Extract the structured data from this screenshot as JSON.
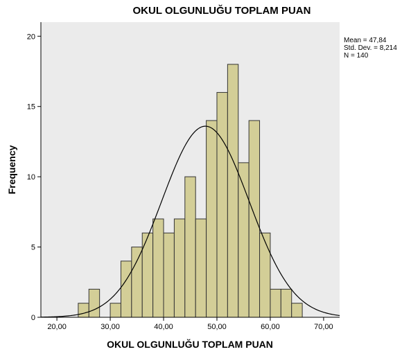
{
  "chart_data": {
    "type": "bar",
    "subtype": "histogram",
    "title": "OKUL OLGUNLUĞU TOPLAM PUAN",
    "xlabel": "OKUL OLGUNLUĞU TOPLAM PUAN",
    "ylabel": "Frequency",
    "xlim": [
      17,
      73
    ],
    "ylim": [
      0,
      21
    ],
    "xticks": [
      20,
      30,
      40,
      50,
      60,
      70
    ],
    "xtick_labels": [
      "20,00",
      "30,00",
      "40,00",
      "50,00",
      "60,00",
      "70,00"
    ],
    "yticks": [
      0,
      5,
      10,
      15,
      20
    ],
    "ytick_labels": [
      "0",
      "5",
      "10",
      "15",
      "20"
    ],
    "bin_width": 2,
    "bin_starts": [
      24,
      26,
      28,
      30,
      32,
      34,
      36,
      38,
      40,
      42,
      44,
      46,
      48,
      50,
      52,
      54,
      56,
      58,
      60,
      62,
      64
    ],
    "values": [
      1,
      2,
      0,
      1,
      4,
      5,
      6,
      7,
      6,
      7,
      10,
      7,
      14,
      16,
      18,
      11,
      14,
      6,
      2,
      2,
      1
    ],
    "normal_curve": {
      "mean": 47.84,
      "std_dev": 8.214,
      "n": 140
    },
    "stats_text": [
      "Mean = 47,84",
      "Std. Dev. = 8,214",
      "N = 140"
    ],
    "grid": false,
    "colors": {
      "plot_background": "#ebebeb",
      "bar_fill": "#d3ce97",
      "bar_edge": "#333333",
      "curve": "#000000"
    }
  }
}
